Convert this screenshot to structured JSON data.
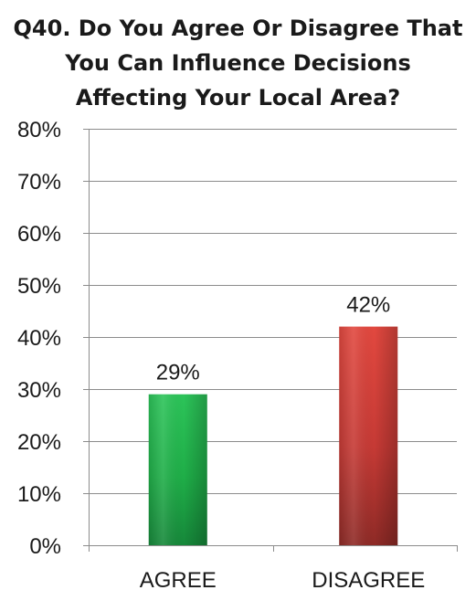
{
  "chart_data": {
    "type": "bar",
    "title_lines": [
      "Q40. Do You Agree Or Disagree That",
      "You Can Influence Decisions",
      "Affecting Your Local Area?"
    ],
    "categories": [
      "AGREE",
      "DISAGREE"
    ],
    "values": [
      29,
      42
    ],
    "data_labels": [
      "29%",
      "42%"
    ],
    "bar_colors": [
      "#1fb24a",
      "#d2403a"
    ],
    "ylim": [
      0,
      80
    ],
    "y_ticks": [
      0,
      10,
      20,
      30,
      40,
      50,
      60,
      70,
      80
    ],
    "y_tick_labels": [
      "0%",
      "10%",
      "20%",
      "30%",
      "40%",
      "50%",
      "60%",
      "70%",
      "80%"
    ],
    "grid": true,
    "legend": "none"
  }
}
